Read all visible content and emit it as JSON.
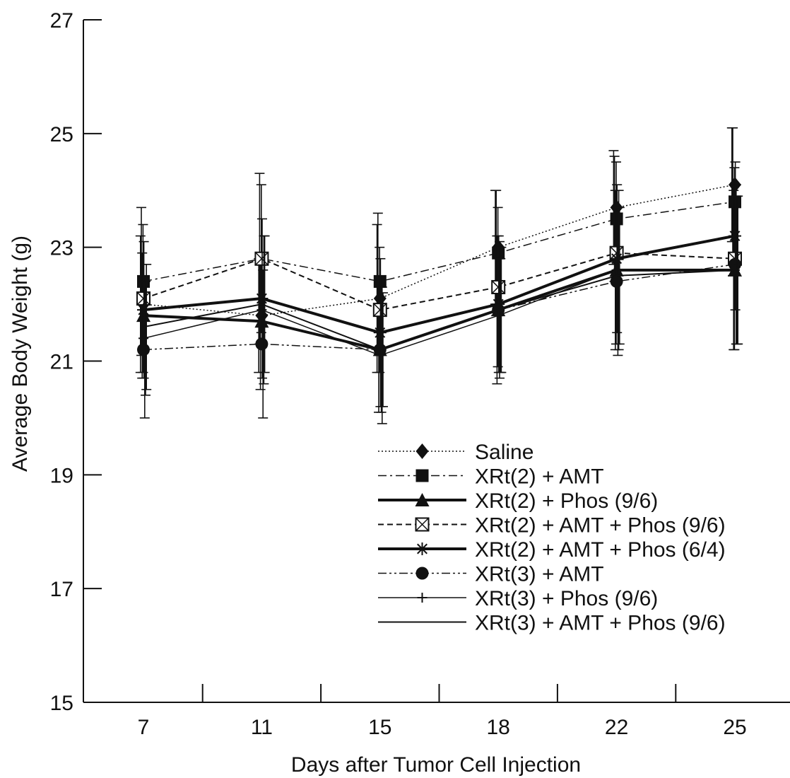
{
  "chart_data": {
    "type": "line",
    "title": "",
    "xlabel": "Days after Tumor Cell Injection",
    "ylabel": "Average Body Weight (g)",
    "categories": [
      "7",
      "11",
      "15",
      "18",
      "22",
      "25"
    ],
    "ylim": [
      15,
      27
    ],
    "yticks": [
      "15",
      "17",
      "19",
      "21",
      "23",
      "25",
      "27"
    ],
    "grid": false,
    "legend_position": "bottom-right",
    "series": [
      {
        "name": "Saline",
        "values": [
          22.0,
          21.8,
          22.1,
          23.0,
          23.7,
          24.1
        ],
        "err": [
          1.2,
          1.0,
          1.3,
          1.0,
          1.0,
          1.0
        ],
        "marker": "diamond",
        "dash": "dotted",
        "width": 1.5
      },
      {
        "name": "XRt(2) + AMT",
        "values": [
          22.4,
          22.8,
          22.4,
          22.9,
          23.5,
          23.8
        ],
        "err": [
          1.3,
          1.5,
          1.2,
          1.1,
          1.1,
          1.3
        ],
        "marker": "square",
        "dash": "dashdot",
        "width": 1.5
      },
      {
        "name": "XRt(2) + Phos (9/6)",
        "values": [
          21.8,
          21.7,
          21.2,
          21.9,
          22.6,
          22.6
        ],
        "err": [
          1.1,
          1.2,
          1.1,
          1.3,
          1.4,
          1.4
        ],
        "marker": "triangle",
        "dash": "solid",
        "width": 4
      },
      {
        "name": "XRt(2) + AMT + Phos (9/6)",
        "values": [
          22.1,
          22.8,
          21.9,
          22.3,
          22.9,
          22.8
        ],
        "err": [
          1.3,
          1.3,
          1.1,
          1.4,
          1.6,
          1.6
        ],
        "marker": "boxx",
        "dash": "dashed",
        "width": 2
      },
      {
        "name": "XRt(2) + AMT + Phos (6/4)",
        "values": [
          21.9,
          22.1,
          21.5,
          22.0,
          22.8,
          23.2
        ],
        "err": [
          1.2,
          1.4,
          1.3,
          1.2,
          1.3,
          1.3
        ],
        "marker": "star",
        "dash": "solid",
        "width": 4
      },
      {
        "name": "XRt(3) + AMT",
        "values": [
          21.2,
          21.3,
          21.2,
          21.9,
          22.4,
          22.7
        ],
        "err": [
          1.2,
          1.3,
          1.1,
          1.2,
          1.3,
          1.4
        ],
        "marker": "circle",
        "dash": "dashdotdot",
        "width": 1.5
      },
      {
        "name": "XRt(3) + Phos (9/6)",
        "values": [
          21.4,
          21.9,
          21.1,
          21.8,
          22.6,
          22.6
        ],
        "err": [
          1.0,
          1.3,
          1.2,
          1.0,
          1.4,
          1.3
        ],
        "marker": "plus",
        "dash": "solid",
        "width": 1.5
      },
      {
        "name": "XRt(3) + AMT + Phos (9/6)",
        "values": [
          21.6,
          22.0,
          21.2,
          21.9,
          22.5,
          22.6
        ],
        "err": [
          1.1,
          1.2,
          1.0,
          1.1,
          1.2,
          1.3
        ],
        "marker": "none",
        "dash": "solid",
        "width": 2
      }
    ]
  }
}
